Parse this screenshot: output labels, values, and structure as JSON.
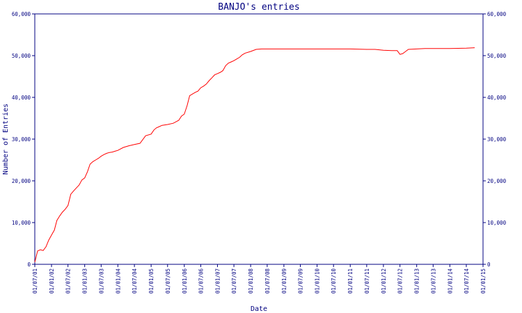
{
  "chart_data": {
    "type": "line",
    "title": "BANJO's entries",
    "xlabel": "Date",
    "ylabel": "Number of Entries",
    "ylim": [
      0,
      60000
    ],
    "xlim": [
      "2001-07-01",
      "2015-01-01"
    ],
    "y_ticks": [
      0,
      10000,
      20000,
      30000,
      40000,
      50000,
      60000
    ],
    "y_tick_labels": [
      "0",
      "10,000",
      "20,000",
      "30,000",
      "40,000",
      "50,000",
      "60,000"
    ],
    "x_ticks": [
      "2001-07-01",
      "2002-01-01",
      "2002-07-01",
      "2003-01-01",
      "2003-07-01",
      "2004-01-01",
      "2004-07-01",
      "2005-01-01",
      "2005-07-01",
      "2006-01-01",
      "2006-07-01",
      "2007-01-01",
      "2007-07-01",
      "2008-01-01",
      "2008-07-01",
      "2009-01-01",
      "2009-07-01",
      "2010-01-01",
      "2010-07-01",
      "2011-01-01",
      "2011-07-01",
      "2012-01-01",
      "2012-07-01",
      "2013-01-01",
      "2013-07-01",
      "2014-01-01",
      "2014-07-01",
      "2015-01-01"
    ],
    "x_tick_labels": [
      "01/07/01",
      "01/01/02",
      "01/07/02",
      "01/01/03",
      "01/07/03",
      "01/01/04",
      "01/07/04",
      "01/01/05",
      "01/07/05",
      "01/01/06",
      "01/07/06",
      "01/01/07",
      "01/07/07",
      "01/01/08",
      "01/07/08",
      "01/01/09",
      "01/07/09",
      "01/01/10",
      "01/07/10",
      "01/01/11",
      "01/07/11",
      "01/01/12",
      "01/07/12",
      "01/01/13",
      "01/07/13",
      "01/01/14",
      "01/07/14",
      "01/01/15"
    ],
    "grid": false,
    "legend": "none",
    "colors": {
      "line": "#ff0000",
      "axis": "#000080",
      "text": "#000080"
    },
    "series": [
      {
        "x": [
          "2001-07-01",
          "2001-08-01",
          "2001-09-01",
          "2001-10-01",
          "2001-11-01",
          "2001-12-01",
          "2002-01-01",
          "2002-02-01",
          "2002-03-01",
          "2002-04-01",
          "2002-05-01",
          "2002-06-01",
          "2002-07-01",
          "2002-08-01",
          "2002-09-01",
          "2002-10-01",
          "2002-11-01",
          "2002-12-01",
          "2003-01-01",
          "2003-02-01",
          "2003-03-01",
          "2003-04-01",
          "2003-05-01",
          "2003-06-01",
          "2003-07-01",
          "2003-08-01",
          "2003-09-01",
          "2003-10-01",
          "2003-11-01",
          "2003-12-01",
          "2004-01-01",
          "2004-03-01",
          "2004-05-01",
          "2004-07-01",
          "2004-09-01",
          "2004-11-01",
          "2005-01-01",
          "2005-02-01",
          "2005-03-01",
          "2005-04-01",
          "2005-05-01",
          "2005-07-01",
          "2005-09-01",
          "2005-11-01",
          "2005-12-01",
          "2006-01-01",
          "2006-02-01",
          "2006-03-01",
          "2006-04-01",
          "2006-05-01",
          "2006-06-01",
          "2006-07-01",
          "2006-08-01",
          "2006-09-01",
          "2006-10-01",
          "2006-11-01",
          "2006-12-01",
          "2007-01-01",
          "2007-02-01",
          "2007-03-01",
          "2007-04-01",
          "2007-05-01",
          "2007-06-01",
          "2007-07-01",
          "2007-08-01",
          "2007-09-01",
          "2007-10-01",
          "2007-11-01",
          "2008-01-01",
          "2008-03-01",
          "2008-05-01",
          "2008-07-01",
          "2008-08-01",
          "2008-09-01",
          "2008-10-01",
          "2009-01-01",
          "2009-07-01",
          "2010-01-01",
          "2010-07-01",
          "2011-01-01",
          "2011-07-01",
          "2011-10-01",
          "2012-01-01",
          "2012-04-01",
          "2012-06-01",
          "2012-07-01",
          "2012-08-01",
          "2012-09-01",
          "2012-10-01",
          "2013-01-01",
          "2013-04-01",
          "2013-07-01",
          "2014-01-01",
          "2014-07-01",
          "2014-10-01"
        ],
        "y": [
          500,
          3200,
          3500,
          3300,
          4200,
          5800,
          7000,
          8200,
          10500,
          11600,
          12500,
          13200,
          14100,
          16800,
          17600,
          18300,
          19000,
          20200,
          20700,
          22200,
          24000,
          24600,
          25000,
          25400,
          25900,
          26300,
          26600,
          26800,
          26900,
          27100,
          27300,
          28000,
          28400,
          28700,
          29000,
          30800,
          31200,
          32200,
          32700,
          33000,
          33300,
          33500,
          33800,
          34500,
          35500,
          36000,
          38000,
          40400,
          40800,
          41200,
          41500,
          42300,
          42700,
          43200,
          44000,
          44700,
          45400,
          45700,
          46000,
          46400,
          47600,
          48200,
          48500,
          48800,
          49200,
          49600,
          50200,
          50600,
          51000,
          51500,
          51600,
          51600,
          51600,
          51600,
          51600,
          51600,
          51600,
          51600,
          51600,
          51600,
          51500,
          51500,
          51300,
          51200,
          51200,
          50300,
          50500,
          51000,
          51500,
          51600,
          51700,
          51700,
          51700,
          51800,
          51900
        ]
      }
    ]
  }
}
